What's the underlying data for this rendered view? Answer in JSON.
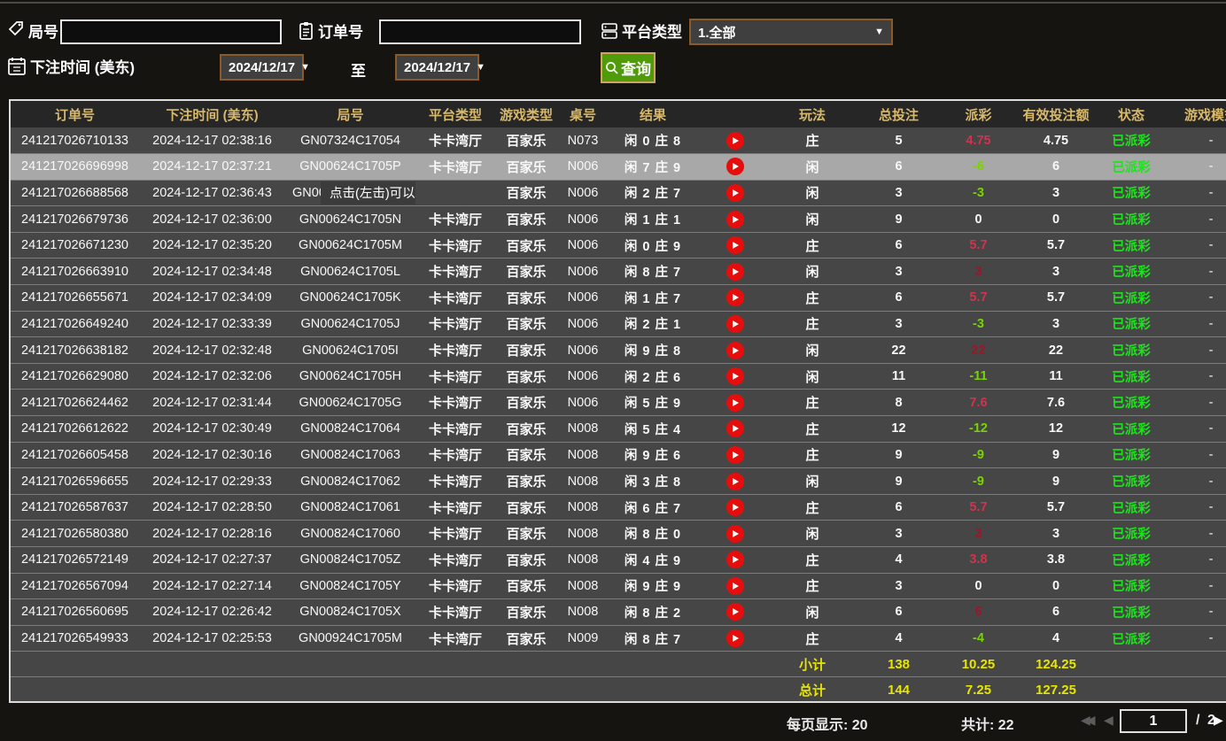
{
  "colors": {
    "header_gold": "#d8b869",
    "win_red": "#d0344c",
    "win_red_dark": "#9c1628",
    "lose_green": "#79d400",
    "neutral_white": "#f8f8f8",
    "status_green": "#1be51b",
    "total_yellow": "#e6e600",
    "selected_row_bg": "#a8a8a8",
    "button_green": "#4f9b0a"
  },
  "filters": {
    "round": {
      "label": "局号",
      "value": ""
    },
    "order": {
      "label": "订单号",
      "value": ""
    },
    "platform": {
      "label": "平台类型",
      "value": "1.全部"
    },
    "bet_time": {
      "label": "下注时间 (美东)",
      "from": "2024/12/17",
      "to_label": "至",
      "to": "2024/12/17"
    },
    "search": {
      "label": "查询"
    }
  },
  "table": {
    "headers": [
      "订单号",
      "下注时间 (美东)",
      "局号",
      "平台类型",
      "游戏类型",
      "桌号",
      "结果",
      "",
      "玩法",
      "总投注",
      "派彩",
      "有效投注额",
      "状态",
      "游戏模式"
    ],
    "rows": [
      {
        "order_id": "241217026710133",
        "bet_time": "2024-12-17 02:38:16",
        "round_id": "GN07324C17054",
        "platform": "卡卡湾厅",
        "game_type": "百家乐",
        "table_no": "N073",
        "result": "闲 0 庄 8",
        "play_type": "庄",
        "total_bet": "5",
        "payout": "4.75",
        "payout_tone": "win_red",
        "valid_bet": "4.75",
        "status": "已派彩",
        "game_mode": "-",
        "selected": false
      },
      {
        "order_id": "241217026696998",
        "bet_time": "2024-12-17 02:37:21",
        "round_id": "GN00624C1705P",
        "platform": "卡卡湾厅",
        "game_type": "百家乐",
        "table_no": "N006",
        "result": "闲 7 庄 9",
        "play_type": "闲",
        "total_bet": "6",
        "payout": "-6",
        "payout_tone": "lose_green",
        "valid_bet": "6",
        "status": "已派彩",
        "game_mode": "-",
        "selected": true
      },
      {
        "order_id": "241217026688568",
        "bet_time": "2024-12-17 02:36:43",
        "round_id": "GN00",
        "platform": "",
        "game_type": "百家乐",
        "table_no": "N006",
        "result": "闲 2 庄 7",
        "play_type": "闲",
        "total_bet": "3",
        "payout": "-3",
        "payout_tone": "lose_green",
        "valid_bet": "3",
        "status": "已派彩",
        "game_mode": "-",
        "selected": false,
        "tooltip": "点击(左击)可以复制局号"
      },
      {
        "order_id": "241217026679736",
        "bet_time": "2024-12-17 02:36:00",
        "round_id": "GN00624C1705N",
        "platform": "卡卡湾厅",
        "game_type": "百家乐",
        "table_no": "N006",
        "result": "闲 1 庄 1",
        "play_type": "闲",
        "total_bet": "9",
        "payout": "0",
        "payout_tone": "neutral_white",
        "valid_bet": "0",
        "status": "已派彩",
        "game_mode": "-",
        "selected": false
      },
      {
        "order_id": "241217026671230",
        "bet_time": "2024-12-17 02:35:20",
        "round_id": "GN00624C1705M",
        "platform": "卡卡湾厅",
        "game_type": "百家乐",
        "table_no": "N006",
        "result": "闲 0 庄 9",
        "play_type": "庄",
        "total_bet": "6",
        "payout": "5.7",
        "payout_tone": "win_red",
        "valid_bet": "5.7",
        "status": "已派彩",
        "game_mode": "-",
        "selected": false
      },
      {
        "order_id": "241217026663910",
        "bet_time": "2024-12-17 02:34:48",
        "round_id": "GN00624C1705L",
        "platform": "卡卡湾厅",
        "game_type": "百家乐",
        "table_no": "N006",
        "result": "闲 8 庄 7",
        "play_type": "闲",
        "total_bet": "3",
        "payout": "3",
        "payout_tone": "win_red_dark",
        "valid_bet": "3",
        "status": "已派彩",
        "game_mode": "-",
        "selected": false
      },
      {
        "order_id": "241217026655671",
        "bet_time": "2024-12-17 02:34:09",
        "round_id": "GN00624C1705K",
        "platform": "卡卡湾厅",
        "game_type": "百家乐",
        "table_no": "N006",
        "result": "闲 1 庄 7",
        "play_type": "庄",
        "total_bet": "6",
        "payout": "5.7",
        "payout_tone": "win_red",
        "valid_bet": "5.7",
        "status": "已派彩",
        "game_mode": "-",
        "selected": false
      },
      {
        "order_id": "241217026649240",
        "bet_time": "2024-12-17 02:33:39",
        "round_id": "GN00624C1705J",
        "platform": "卡卡湾厅",
        "game_type": "百家乐",
        "table_no": "N006",
        "result": "闲 2 庄 1",
        "play_type": "庄",
        "total_bet": "3",
        "payout": "-3",
        "payout_tone": "lose_green",
        "valid_bet": "3",
        "status": "已派彩",
        "game_mode": "-",
        "selected": false
      },
      {
        "order_id": "241217026638182",
        "bet_time": "2024-12-17 02:32:48",
        "round_id": "GN00624C1705I",
        "platform": "卡卡湾厅",
        "game_type": "百家乐",
        "table_no": "N006",
        "result": "闲 9 庄 8",
        "play_type": "闲",
        "total_bet": "22",
        "payout": "22",
        "payout_tone": "win_red_dark",
        "valid_bet": "22",
        "status": "已派彩",
        "game_mode": "-",
        "selected": false
      },
      {
        "order_id": "241217026629080",
        "bet_time": "2024-12-17 02:32:06",
        "round_id": "GN00624C1705H",
        "platform": "卡卡湾厅",
        "game_type": "百家乐",
        "table_no": "N006",
        "result": "闲 2 庄 6",
        "play_type": "闲",
        "total_bet": "11",
        "payout": "-11",
        "payout_tone": "lose_green",
        "valid_bet": "11",
        "status": "已派彩",
        "game_mode": "-",
        "selected": false
      },
      {
        "order_id": "241217026624462",
        "bet_time": "2024-12-17 02:31:44",
        "round_id": "GN00624C1705G",
        "platform": "卡卡湾厅",
        "game_type": "百家乐",
        "table_no": "N006",
        "result": "闲 5 庄 9",
        "play_type": "庄",
        "total_bet": "8",
        "payout": "7.6",
        "payout_tone": "win_red",
        "valid_bet": "7.6",
        "status": "已派彩",
        "game_mode": "-",
        "selected": false
      },
      {
        "order_id": "241217026612622",
        "bet_time": "2024-12-17 02:30:49",
        "round_id": "GN00824C17064",
        "platform": "卡卡湾厅",
        "game_type": "百家乐",
        "table_no": "N008",
        "result": "闲 5 庄 4",
        "play_type": "庄",
        "total_bet": "12",
        "payout": "-12",
        "payout_tone": "lose_green",
        "valid_bet": "12",
        "status": "已派彩",
        "game_mode": "-",
        "selected": false
      },
      {
        "order_id": "241217026605458",
        "bet_time": "2024-12-17 02:30:16",
        "round_id": "GN00824C17063",
        "platform": "卡卡湾厅",
        "game_type": "百家乐",
        "table_no": "N008",
        "result": "闲 9 庄 6",
        "play_type": "庄",
        "total_bet": "9",
        "payout": "-9",
        "payout_tone": "lose_green",
        "valid_bet": "9",
        "status": "已派彩",
        "game_mode": "-",
        "selected": false
      },
      {
        "order_id": "241217026596655",
        "bet_time": "2024-12-17 02:29:33",
        "round_id": "GN00824C17062",
        "platform": "卡卡湾厅",
        "game_type": "百家乐",
        "table_no": "N008",
        "result": "闲 3 庄 8",
        "play_type": "闲",
        "total_bet": "9",
        "payout": "-9",
        "payout_tone": "lose_green",
        "valid_bet": "9",
        "status": "已派彩",
        "game_mode": "-",
        "selected": false
      },
      {
        "order_id": "241217026587637",
        "bet_time": "2024-12-17 02:28:50",
        "round_id": "GN00824C17061",
        "platform": "卡卡湾厅",
        "game_type": "百家乐",
        "table_no": "N008",
        "result": "闲 6 庄 7",
        "play_type": "庄",
        "total_bet": "6",
        "payout": "5.7",
        "payout_tone": "win_red",
        "valid_bet": "5.7",
        "status": "已派彩",
        "game_mode": "-",
        "selected": false
      },
      {
        "order_id": "241217026580380",
        "bet_time": "2024-12-17 02:28:16",
        "round_id": "GN00824C17060",
        "platform": "卡卡湾厅",
        "game_type": "百家乐",
        "table_no": "N008",
        "result": "闲 8 庄 0",
        "play_type": "闲",
        "total_bet": "3",
        "payout": "3",
        "payout_tone": "win_red_dark",
        "valid_bet": "3",
        "status": "已派彩",
        "game_mode": "-",
        "selected": false
      },
      {
        "order_id": "241217026572149",
        "bet_time": "2024-12-17 02:27:37",
        "round_id": "GN00824C1705Z",
        "platform": "卡卡湾厅",
        "game_type": "百家乐",
        "table_no": "N008",
        "result": "闲 4 庄 9",
        "play_type": "庄",
        "total_bet": "4",
        "payout": "3.8",
        "payout_tone": "win_red",
        "valid_bet": "3.8",
        "status": "已派彩",
        "game_mode": "-",
        "selected": false
      },
      {
        "order_id": "241217026567094",
        "bet_time": "2024-12-17 02:27:14",
        "round_id": "GN00824C1705Y",
        "platform": "卡卡湾厅",
        "game_type": "百家乐",
        "table_no": "N008",
        "result": "闲 9 庄 9",
        "play_type": "庄",
        "total_bet": "3",
        "payout": "0",
        "payout_tone": "neutral_white",
        "valid_bet": "0",
        "status": "已派彩",
        "game_mode": "-",
        "selected": false
      },
      {
        "order_id": "241217026560695",
        "bet_time": "2024-12-17 02:26:42",
        "round_id": "GN00824C1705X",
        "platform": "卡卡湾厅",
        "game_type": "百家乐",
        "table_no": "N008",
        "result": "闲 8 庄 2",
        "play_type": "闲",
        "total_bet": "6",
        "payout": "6",
        "payout_tone": "win_red_dark",
        "valid_bet": "6",
        "status": "已派彩",
        "game_mode": "-",
        "selected": false
      },
      {
        "order_id": "241217026549933",
        "bet_time": "2024-12-17 02:25:53",
        "round_id": "GN00924C1705M",
        "platform": "卡卡湾厅",
        "game_type": "百家乐",
        "table_no": "N009",
        "result": "闲 8 庄 7",
        "play_type": "庄",
        "total_bet": "4",
        "payout": "-4",
        "payout_tone": "lose_green",
        "valid_bet": "4",
        "status": "已派彩",
        "game_mode": "-",
        "selected": false
      }
    ]
  },
  "summary": {
    "subtotal_label": "小计",
    "subtotal_bet": "138",
    "subtotal_payout": "10.25",
    "subtotal_valid": "124.25",
    "total_label": "总计",
    "total_bet": "144",
    "total_payout": "7.25",
    "total_valid": "127.25"
  },
  "pagination": {
    "page_size_text": "每页显示: 20",
    "total_count_text": "共计: 22",
    "current_page": "1",
    "separator": "/",
    "total_pages": "2"
  }
}
